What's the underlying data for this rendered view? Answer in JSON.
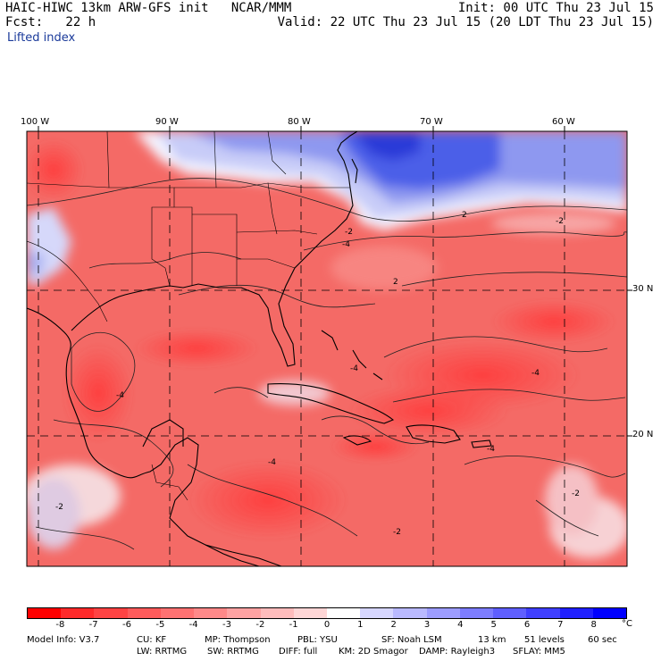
{
  "header": {
    "title": "HAIC-HIWC 13km ARW-GFS init   NCAR/MMM",
    "init": "Init: 00 UTC Thu 23 Jul 15",
    "fcst": "Fcst:   22 h",
    "valid": "Valid: 22 UTC Thu 23 Jul 15 (20 LDT Thu 23 Jul 15)",
    "field": "Lifted index"
  },
  "map": {
    "lon_labels": [
      "100 W",
      "90 W",
      "80 W",
      "70 W",
      "60 W"
    ],
    "lat_labels": [
      "30 N",
      "20 N"
    ],
    "contour_labels": [
      "2",
      "-2",
      "-4",
      "2",
      "-2",
      "-4",
      "-4",
      "-2",
      "-4",
      "-4",
      "-4",
      "-2",
      "-2"
    ],
    "colors": {
      "stable_blue": "#4c5fe8",
      "neutral": "#f4f4ff",
      "unstable_red": "#f2534f",
      "outline": "#000000"
    }
  },
  "colorbar": {
    "ticks": [
      "-8",
      "-7",
      "-6",
      "-5",
      "-4",
      "-3",
      "-2",
      "-1",
      "0",
      "1",
      "2",
      "3",
      "4",
      "5",
      "6",
      "7",
      "8"
    ],
    "unit": "°C",
    "colors": [
      "#ff0000",
      "#ff2a2a",
      "#ff4343",
      "#ff5b5b",
      "#ff7272",
      "#ff8989",
      "#ffa3a3",
      "#ffbcbc",
      "#ffd6d6",
      "#ffffff",
      "#d6d6ff",
      "#b9b9ff",
      "#9c9cff",
      "#7d7dff",
      "#5f5fff",
      "#3f3fff",
      "#2020ff",
      "#0000ff"
    ]
  },
  "footer": {
    "line1": {
      "model_info": "Model Info: V3.7",
      "cu": "CU: KF",
      "mp": "MP: Thompson",
      "pbl": "PBL: YSU",
      "sf": "SF: Noah LSM",
      "res": "13 km",
      "levels": "51 levels",
      "dt": "60 sec"
    },
    "line2": {
      "lw": "LW: RRTMG",
      "sw": "SW: RRTMG",
      "diff": "DIFF: full",
      "km": "KM: 2D Smagor",
      "damp": "DAMP: Rayleigh3",
      "sflay": "SFLAY: MM5"
    }
  }
}
